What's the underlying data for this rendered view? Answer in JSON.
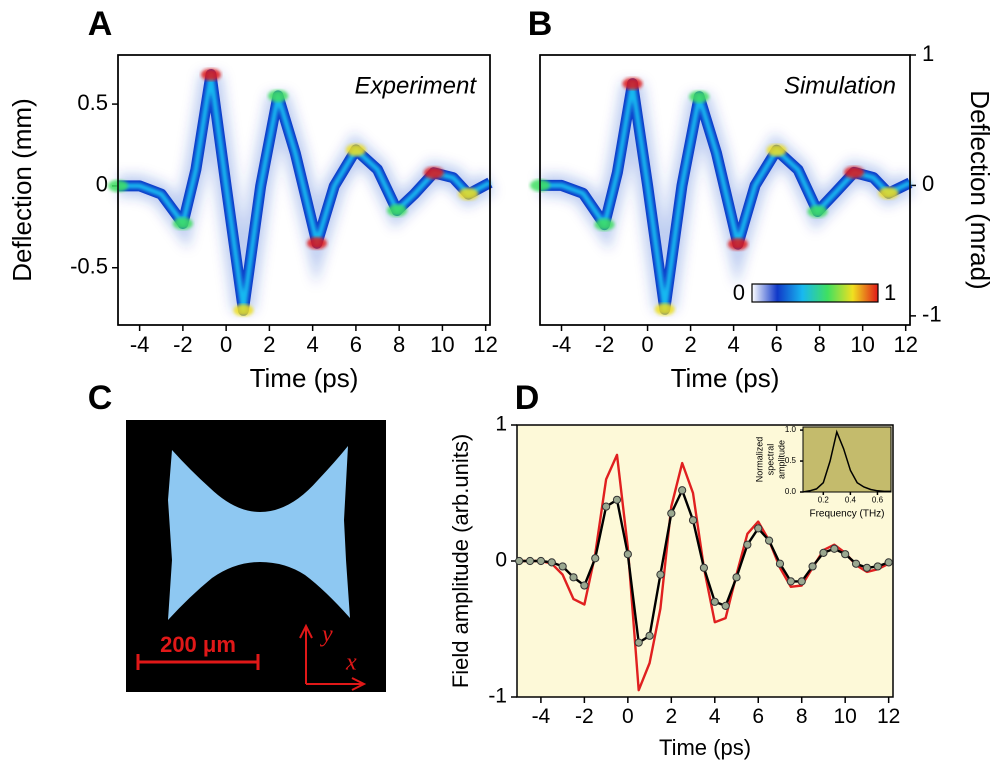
{
  "chart_data": [
    {
      "type": "heatmap",
      "panel": "A",
      "annotation": "Experiment",
      "xlabel": "Time (ps)",
      "ylabel": "Deflection (mm)",
      "xlim": [
        -5,
        12.2
      ],
      "xticks": [
        -4,
        -2,
        0,
        2,
        4,
        6,
        8,
        10,
        12
      ],
      "ylim": [
        -0.85,
        0.8
      ],
      "yticks": [
        -0.5,
        0,
        0.5
      ],
      "x": [
        -5,
        -4,
        -3,
        -2,
        -1.4,
        -0.7,
        0,
        0.8,
        1.6,
        2.4,
        3.2,
        4.2,
        5,
        6,
        7,
        7.9,
        8.7,
        9.6,
        10.5,
        11.2,
        12.2
      ],
      "values": [
        0,
        0,
        -0.05,
        -0.23,
        0.1,
        0.68,
        0,
        -0.76,
        0,
        0.55,
        0.2,
        -0.35,
        0,
        0.22,
        0.1,
        -0.15,
        -0.05,
        0.08,
        0.05,
        -0.05,
        0.02
      ],
      "colormap": [
        "#ffffff",
        "#1038c8",
        "#18b8f0",
        "#40e060",
        "#f0e020",
        "#e01818"
      ]
    },
    {
      "type": "heatmap",
      "panel": "B",
      "annotation": "Simulation",
      "xlabel": "Time (ps)",
      "y2label": "Deflection (mrad)",
      "xlim": [
        -5,
        12.2
      ],
      "xticks": [
        -4,
        -2,
        0,
        2,
        4,
        6,
        8,
        10,
        12
      ],
      "y2lim": [
        -1.07,
        1.0
      ],
      "y2ticks": [
        -1,
        0,
        1
      ],
      "x": [
        -5,
        -4,
        -3,
        -2,
        -1.4,
        -0.7,
        0,
        0.8,
        1.6,
        2.4,
        3.2,
        4.2,
        5,
        6,
        7,
        7.9,
        8.7,
        9.6,
        10.5,
        11.2,
        12.2
      ],
      "values": [
        0,
        0,
        -0.06,
        -0.3,
        0.1,
        0.78,
        0,
        -0.95,
        0,
        0.68,
        0.25,
        -0.45,
        0,
        0.27,
        0.12,
        -0.2,
        -0.06,
        0.1,
        0.06,
        -0.06,
        0.02
      ],
      "colormap": [
        "#ffffff",
        "#1038c8",
        "#18b8f0",
        "#40e060",
        "#f0e020",
        "#e01818"
      ],
      "colorbar_labels": [
        0,
        1
      ]
    },
    {
      "type": "image",
      "panel": "C",
      "scale_label": "200 μm",
      "axes": [
        "x",
        "y"
      ]
    },
    {
      "type": "line",
      "panel": "D",
      "xlabel": "Time (ps)",
      "ylabel": "Field amplitude (arb.units)",
      "xlim": [
        -5.1,
        12.2
      ],
      "xticks": [
        -4,
        -2,
        0,
        2,
        4,
        6,
        8,
        10,
        12
      ],
      "ylim": [
        -1,
        1
      ],
      "yticks": [
        -1,
        0,
        1
      ],
      "background": "#fdf9d8",
      "x": [
        -5,
        -4.5,
        -4,
        -3.5,
        -3,
        -2.5,
        -2,
        -1.5,
        -1,
        -0.5,
        0,
        0.5,
        1,
        1.5,
        2,
        2.5,
        3,
        3.5,
        4,
        4.5,
        5,
        5.5,
        6,
        6.5,
        7,
        7.5,
        8,
        8.5,
        9,
        9.5,
        10,
        10.5,
        11,
        11.5,
        12
      ],
      "series": [
        {
          "color": "#e02020",
          "values": [
            0,
            0,
            0,
            -0.02,
            -0.1,
            -0.28,
            -0.32,
            0.05,
            0.6,
            0.78,
            0.1,
            -0.95,
            -0.75,
            -0.35,
            0.4,
            0.72,
            0.5,
            -0.05,
            -0.45,
            -0.42,
            -0.1,
            0.2,
            0.29,
            0.15,
            -0.05,
            -0.19,
            -0.18,
            -0.05,
            0.08,
            0.12,
            0.06,
            -0.03,
            -0.08,
            -0.06,
            -0.02
          ]
        },
        {
          "color": "#000000",
          "marker_color": "#9aa890",
          "values": [
            0,
            0,
            0,
            -0.01,
            -0.04,
            -0.12,
            -0.18,
            0.02,
            0.4,
            0.45,
            0.05,
            -0.6,
            -0.55,
            -0.1,
            0.35,
            0.52,
            0.3,
            -0.05,
            -0.3,
            -0.33,
            -0.12,
            0.12,
            0.24,
            0.15,
            -0.02,
            -0.15,
            -0.15,
            -0.04,
            0.06,
            0.09,
            0.05,
            -0.02,
            -0.05,
            -0.04,
            -0.01
          ]
        }
      ],
      "inset": {
        "type": "line",
        "xlabel": "Frequency (THz)",
        "ylabel": [
          "Normalized",
          "spectral",
          "amplitude"
        ],
        "background": "#c4bb6c",
        "xlim": [
          0.05,
          0.7
        ],
        "xticks": [
          0.2,
          0.4,
          0.6
        ],
        "ylim": [
          0,
          1.05
        ],
        "yticks": [
          {
            "value": 0,
            "label": "0.0"
          },
          {
            "value": 0.5,
            "label": "0.5"
          },
          {
            "value": 1,
            "label": "1.0"
          }
        ],
        "x": [
          0.05,
          0.1,
          0.15,
          0.2,
          0.25,
          0.3,
          0.35,
          0.4,
          0.45,
          0.5,
          0.55,
          0.6,
          0.65,
          0.7
        ],
        "values": [
          0,
          0.02,
          0.05,
          0.15,
          0.5,
          0.97,
          0.7,
          0.35,
          0.15,
          0.08,
          0.04,
          0.02,
          0.01,
          0.01
        ],
        "color": "#000000"
      }
    }
  ]
}
